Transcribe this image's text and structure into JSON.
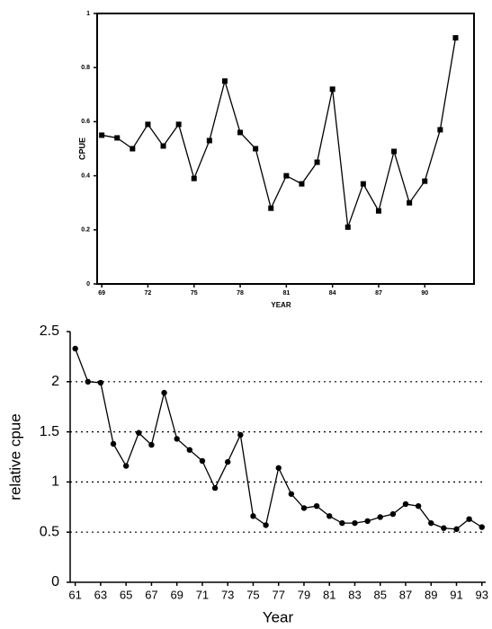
{
  "chart_data": [
    {
      "type": "line",
      "x_label": "YEAR",
      "y_label": "CPUE",
      "x": [
        69,
        70,
        71,
        72,
        73,
        74,
        75,
        76,
        77,
        78,
        79,
        80,
        81,
        82,
        83,
        84,
        85,
        86,
        87,
        88,
        89,
        90,
        91,
        92
      ],
      "values": [
        0.55,
        0.54,
        0.5,
        0.59,
        0.51,
        0.59,
        0.39,
        0.53,
        0.75,
        0.56,
        0.5,
        0.28,
        0.4,
        0.37,
        0.45,
        0.72,
        0.21,
        0.37,
        0.27,
        0.49,
        0.3,
        0.38,
        0.57,
        0.91
      ],
      "color": "#000000",
      "xlim": [
        68.7,
        93.2
      ],
      "xticks": [
        69,
        72,
        75,
        78,
        81,
        84,
        87,
        90
      ],
      "ylim": [
        0,
        1
      ],
      "yticks": [
        0,
        0.2,
        0.4,
        0.6,
        0.8,
        1
      ],
      "grid": false
    },
    {
      "type": "line",
      "x_label": "Year",
      "y_label": "relative cpue",
      "x": [
        61,
        62,
        63,
        64,
        65,
        66,
        67,
        68,
        69,
        70,
        71,
        72,
        73,
        74,
        75,
        76,
        77,
        78,
        79,
        80,
        81,
        82,
        83,
        84,
        85,
        86,
        87,
        88,
        89,
        90,
        91,
        92,
        93
      ],
      "values": [
        2.33,
        2.0,
        1.99,
        1.38,
        1.16,
        1.49,
        1.37,
        1.89,
        1.43,
        1.32,
        1.21,
        0.94,
        1.2,
        1.47,
        0.66,
        0.57,
        1.14,
        0.88,
        0.74,
        0.76,
        0.66,
        0.59,
        0.59,
        0.61,
        0.65,
        0.68,
        0.78,
        0.76,
        0.59,
        0.54,
        0.53,
        0.63,
        0.55
      ],
      "color": "#000000",
      "xlim": [
        60.6,
        93.3
      ],
      "xticks": [
        61,
        63,
        65,
        67,
        69,
        71,
        73,
        75,
        77,
        79,
        81,
        83,
        85,
        87,
        89,
        91,
        93
      ],
      "ylim": [
        0,
        2.5
      ],
      "yticks": [
        0,
        0.5,
        1,
        1.5,
        2,
        2.5
      ],
      "grid": true
    }
  ]
}
